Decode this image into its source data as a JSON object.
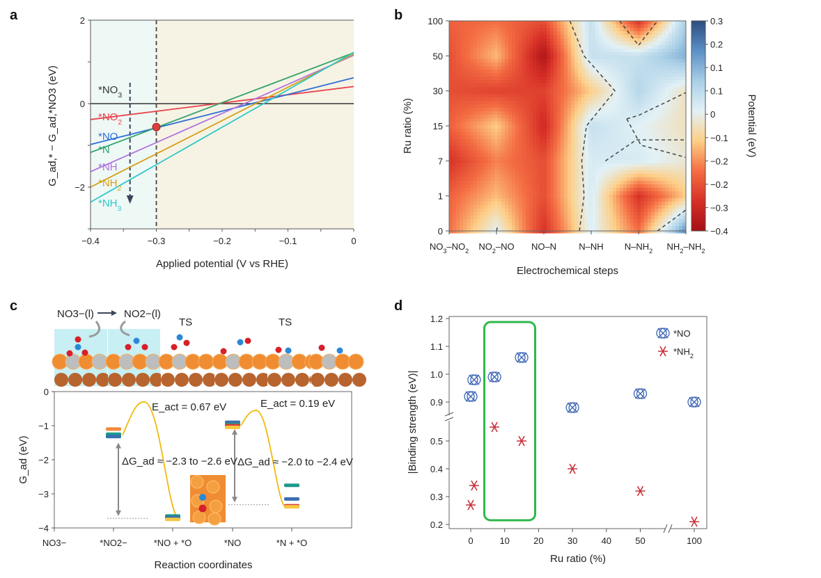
{
  "panels": {
    "a": "a",
    "b": "b",
    "c": "c",
    "d": "d"
  },
  "chart_data": [
    {
      "panel": "a",
      "type": "line",
      "xlabel": "Applied potential (V vs RHE)",
      "ylabel": "G_ad,* − G_ad,*NO3 (eV)",
      "xlim": [
        -0.4,
        0
      ],
      "ylim": [
        -3,
        2
      ],
      "xticks": [
        "-0.4",
        "-0.3",
        "-0.2",
        "-0.1",
        "0"
      ],
      "yticks": [
        "2",
        "0",
        "-2"
      ],
      "vline": -0.3,
      "marker": {
        "x": -0.3,
        "y": -0.56,
        "color": "#d9403a"
      },
      "regions": [
        {
          "from": -0.4,
          "to": -0.3,
          "color": "#eef8f5"
        },
        {
          "from": -0.3,
          "to": 0,
          "color": "#f6f3e4"
        }
      ],
      "series": [
        {
          "name": "*NO3",
          "x": [
            -0.4,
            0
          ],
          "y": [
            0,
            0
          ],
          "color": "#333333"
        },
        {
          "name": "*NO2",
          "x": [
            -0.4,
            0
          ],
          "y": [
            -0.38,
            0.41
          ],
          "color": "#e8414b"
        },
        {
          "name": "*NO",
          "x": [
            -0.4,
            0
          ],
          "y": [
            -0.98,
            0.62
          ],
          "color": "#2f6fd6"
        },
        {
          "name": "*N",
          "x": [
            -0.4,
            0
          ],
          "y": [
            -1.17,
            1.22
          ],
          "color": "#2fa36b"
        },
        {
          "name": "*NH",
          "x": [
            -0.4,
            0
          ],
          "y": [
            -1.63,
            1.16
          ],
          "color": "#b072e0"
        },
        {
          "name": "*NH2",
          "x": [
            -0.4,
            0
          ],
          "y": [
            -2.0,
            1.19
          ],
          "color": "#d4a017"
        },
        {
          "name": "*NH3",
          "x": [
            -0.4,
            0
          ],
          "y": [
            -2.36,
            1.23
          ],
          "color": "#2ec7c9"
        }
      ]
    },
    {
      "panel": "b",
      "type": "heatmap",
      "xlabel": "Electrochemical steps",
      "ylabel": "Ru ratio (%)",
      "colorbar_label": "Potential (eV)",
      "x": [
        "NO3–NO2",
        "NO2–NO",
        "NO–N",
        "N–NH",
        "N–NH2",
        "NH2–NH2"
      ],
      "y": [
        "0",
        "1",
        "7",
        "15",
        "30",
        "50",
        "100"
      ],
      "colorbar_ticks": [
        "0.3",
        "0.2",
        "0.1",
        "0.1",
        "0",
        "-0.1",
        "-0.2",
        "-0.2",
        "-0.3",
        "-0.4"
      ],
      "zlim": [
        -0.4,
        0.3
      ],
      "colormap": [
        "#a50f15",
        "#d73027",
        "#f46d43",
        "#fdcf87",
        "#e2f1f6",
        "#a9cfe6",
        "#5b8fc7",
        "#2b4d7e"
      ],
      "values": [
        [
          -0.2,
          0.0,
          -0.3,
          0.01,
          -0.2,
          0.2
        ],
        [
          -0.22,
          -0.12,
          -0.25,
          0.02,
          -0.3,
          -0.1
        ],
        [
          -0.3,
          -0.18,
          -0.25,
          0.02,
          0.02,
          -0.03
        ],
        [
          -0.22,
          -0.1,
          -0.32,
          0.05,
          0.0,
          -0.05
        ],
        [
          -0.25,
          -0.27,
          -0.27,
          -0.1,
          0.08,
          -0.05
        ],
        [
          -0.25,
          -0.12,
          -0.38,
          0.05,
          0.05,
          0.15
        ],
        [
          -0.22,
          -0.2,
          -0.25,
          0.05,
          -0.3,
          0.1
        ]
      ]
    },
    {
      "panel": "c",
      "type": "line",
      "xlabel": "Reaction coordinates",
      "ylabel": "G_ad (eV)",
      "ylim": [
        -4,
        0
      ],
      "yticks": [
        "0",
        "-1",
        "-2",
        "-3",
        "-4"
      ],
      "categories": [
        "NO3−",
        "*NO2−",
        "*NO + *O",
        "*NO",
        "*N + *O"
      ],
      "levels": [
        {
          "category": "*NO2−",
          "values": [
            -1.1,
            -1.25,
            -1.32
          ],
          "colors": [
            "#f08a3c",
            "#1a9a8a",
            "#3a6fb0"
          ]
        },
        {
          "category": "*NO + *O",
          "values": [
            -3.65,
            -3.7,
            -3.75
          ],
          "colors": [
            "#1a9a8a",
            "#3a6fb0",
            "#f5c842"
          ]
        },
        {
          "category": "*NO",
          "values": [
            -0.9,
            -0.97,
            -1.0,
            -1.05
          ],
          "colors": [
            "#3a6fb0",
            "#1a9a8a",
            "#d9403a",
            "#f5c842"
          ]
        },
        {
          "category": "*N + *O",
          "values": [
            -2.75,
            -3.15,
            -3.35,
            -3.38
          ],
          "colors": [
            "#1a9a8a",
            "#3a6fb0",
            "#d9403a",
            "#f5c842"
          ]
        }
      ],
      "barriers": [
        {
          "peak": -0.3,
          "label": "E_act = 0.67 eV"
        },
        {
          "peak": -0.55,
          "label": "E_act = 0.19 eV"
        }
      ],
      "reference_lines": [
        -3.72,
        -3.32
      ],
      "annotations": [
        "ΔG_ad ≈ −2.3 to −2.6 eV",
        "ΔG_ad ≈ −2.0 to −2.4 eV"
      ],
      "top_labels": {
        "reactant": "NO3−(l)",
        "product": "NO2−(l)",
        "ts1": "TS",
        "ts2": "TS"
      }
    },
    {
      "panel": "d",
      "type": "scatter",
      "xlabel": "Ru ratio (%)",
      "ylabel": "|Binding strength (eV)|",
      "xticks": [
        "0",
        "10",
        "20",
        "30",
        "40",
        "50",
        "100"
      ],
      "yticks": [
        "1.2",
        "1.1",
        "1.0",
        "0.9",
        "0.5",
        "0.4",
        "0.3",
        "0.2"
      ],
      "legend": "top-right",
      "highlight_box": {
        "x_from": 4,
        "x_to": 19,
        "color": "#2db84a"
      },
      "series": [
        {
          "name": "*NO",
          "color": "#3a64b5",
          "x": [
            0,
            1,
            7,
            15,
            30,
            50,
            100
          ],
          "y": [
            0.92,
            0.98,
            0.99,
            1.06,
            0.88,
            0.93,
            0.9
          ]
        },
        {
          "name": "*NH2",
          "color": "#c8313a",
          "x": [
            0,
            1,
            7,
            15,
            30,
            50,
            100
          ],
          "y": [
            0.27,
            0.34,
            0.55,
            0.5,
            0.4,
            0.32,
            0.21
          ]
        }
      ]
    }
  ]
}
